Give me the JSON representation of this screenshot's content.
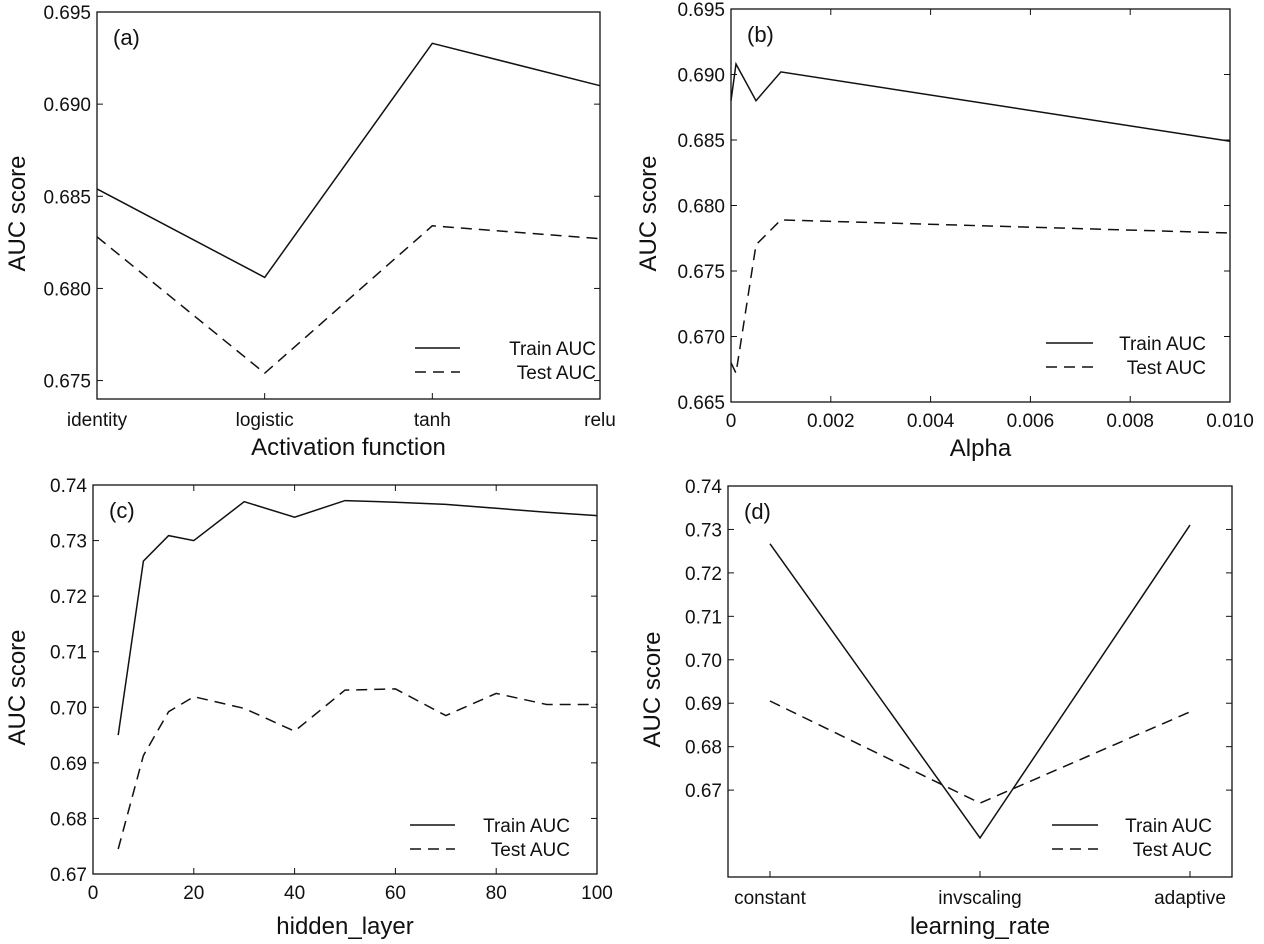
{
  "chart_data": [
    {
      "type": "line",
      "panel_label": "(a)",
      "xlabel": "Activation function",
      "ylabel": "AUC score",
      "x_kind": "category",
      "categories": [
        "identity",
        "logistic",
        "tanh",
        "relu"
      ],
      "ylim": [
        0.674,
        0.695
      ],
      "yticks": [
        0.675,
        0.68,
        0.685,
        0.69,
        0.695
      ],
      "ytick_labels": [
        "0.675",
        "0.680",
        "0.685",
        "0.690",
        "0.695"
      ],
      "legend_position": "lower-right",
      "series": [
        {
          "name": "Train AUC",
          "style": "solid",
          "values": [
            0.6854,
            0.6806,
            0.6933,
            0.691
          ]
        },
        {
          "name": "Test AUC",
          "style": "dashed",
          "values": [
            0.6828,
            0.6754,
            0.6834,
            0.6827
          ]
        }
      ]
    },
    {
      "type": "line",
      "panel_label": "(b)",
      "xlabel": "Alpha",
      "ylabel": "AUC score",
      "x_kind": "numeric",
      "xlim": [
        0,
        0.01
      ],
      "xticks": [
        0,
        0.002,
        0.004,
        0.006,
        0.008,
        0.01
      ],
      "xtick_labels": [
        "0",
        "0.002",
        "0.004",
        "0.006",
        "0.008",
        "0.010"
      ],
      "ylim": [
        0.665,
        0.695
      ],
      "yticks": [
        0.665,
        0.67,
        0.675,
        0.68,
        0.685,
        0.69,
        0.695
      ],
      "ytick_labels": [
        "0.665",
        "0.670",
        "0.675",
        "0.680",
        "0.685",
        "0.690",
        "0.695"
      ],
      "legend_position": "lower-right",
      "series": [
        {
          "name": "Train AUC",
          "style": "solid",
          "x": [
            0,
            0.0001,
            0.0005,
            0.001,
            0.01
          ],
          "values": [
            0.688,
            0.6908,
            0.688,
            0.6902,
            0.6849
          ]
        },
        {
          "name": "Test AUC",
          "style": "dashed",
          "x": [
            0,
            0.0001,
            0.0005,
            0.001,
            0.01
          ],
          "values": [
            0.668,
            0.6672,
            0.677,
            0.6789,
            0.6779
          ]
        }
      ]
    },
    {
      "type": "line",
      "panel_label": "(c)",
      "xlabel": "hidden_layer",
      "ylabel": "AUC score",
      "x_kind": "numeric",
      "xlim": [
        0,
        100
      ],
      "xticks": [
        0,
        20,
        40,
        60,
        80,
        100
      ],
      "xtick_labels": [
        "0",
        "20",
        "40",
        "60",
        "80",
        "100"
      ],
      "ylim": [
        0.67,
        0.74
      ],
      "yticks": [
        0.67,
        0.68,
        0.69,
        0.7,
        0.71,
        0.72,
        0.73,
        0.74
      ],
      "ytick_labels": [
        "0.67",
        "0.68",
        "0.69",
        "0.70",
        "0.71",
        "0.72",
        "0.73",
        "0.74"
      ],
      "legend_position": "lower-right",
      "series": [
        {
          "name": "Train AUC",
          "style": "solid",
          "x": [
            5,
            10,
            15,
            20,
            30,
            40,
            50,
            60,
            70,
            80,
            90,
            100
          ],
          "values": [
            0.695,
            0.7263,
            0.7309,
            0.73,
            0.737,
            0.7342,
            0.7372,
            0.7369,
            0.7365,
            0.7358,
            0.7351,
            0.7345
          ]
        },
        {
          "name": "Test AUC",
          "style": "dashed",
          "x": [
            5,
            10,
            15,
            20,
            30,
            40,
            50,
            60,
            70,
            80,
            90,
            100
          ],
          "values": [
            0.6745,
            0.6913,
            0.6992,
            0.7019,
            0.6998,
            0.6957,
            0.7031,
            0.7033,
            0.6985,
            0.7025,
            0.7005,
            0.7005
          ]
        }
      ]
    },
    {
      "type": "line",
      "panel_label": "(d)",
      "xlabel": "learning_rate",
      "ylabel": "AUC score",
      "x_kind": "category",
      "categories": [
        "constant",
        "invscaling",
        "adaptive"
      ],
      "ylim": [
        0.65,
        0.74
      ],
      "yticks": [
        0.67,
        0.68,
        0.69,
        0.7,
        0.71,
        0.72,
        0.73,
        0.74
      ],
      "ytick_labels": [
        "0.67",
        "0.68",
        "0.69",
        "0.70",
        "0.71",
        "0.72",
        "0.73",
        "0.74"
      ],
      "legend_position": "lower-right",
      "series": [
        {
          "name": "Train AUC",
          "style": "solid",
          "values": [
            0.7267,
            0.659,
            0.731
          ]
        },
        {
          "name": "Test AUC",
          "style": "dashed",
          "values": [
            0.6905,
            0.667,
            0.688
          ]
        }
      ]
    }
  ]
}
